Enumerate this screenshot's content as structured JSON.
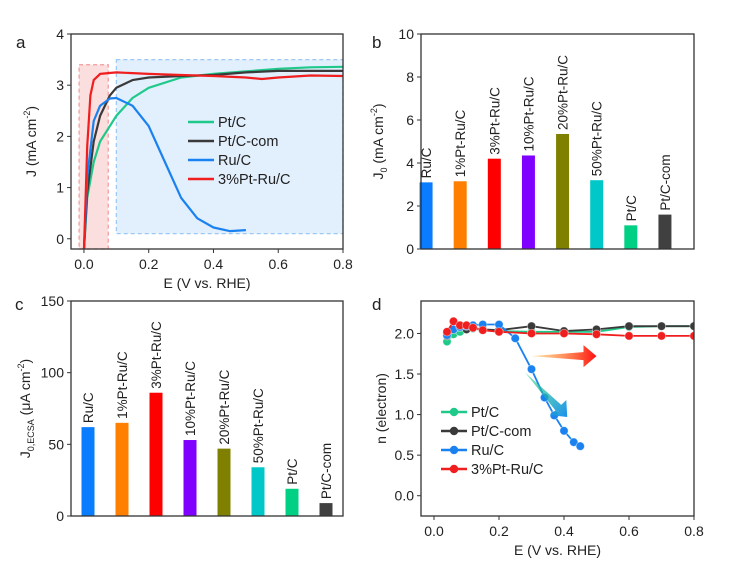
{
  "chart_data": [
    {
      "panel": "a",
      "type": "line",
      "xlabel": "E (V vs. RHE)",
      "ylabel": "J (mA cm",
      "ylabel_sup": "-2",
      "ylabel_end": ")",
      "xlim": [
        -0.04,
        0.8
      ],
      "ylim": [
        -0.2,
        4
      ],
      "xticks": [
        0.0,
        0.2,
        0.4,
        0.6,
        0.8
      ],
      "xtick_labels": [
        "0.0",
        "0.2",
        "0.4",
        "0.6",
        "0.8"
      ],
      "yticks": [
        0,
        1,
        2,
        3,
        4
      ],
      "ytick_labels": [
        "0",
        "1",
        "2",
        "3",
        "4"
      ],
      "legend": "center-right",
      "shaded_regions": [
        {
          "x": [
            -0.015,
            0.075
          ],
          "y": [
            -0.2,
            3.4
          ],
          "color": "#f8c8c8"
        },
        {
          "x": [
            0.1,
            0.8
          ],
          "y": [
            0.1,
            3.5
          ],
          "color": "#cfe4fb"
        }
      ],
      "series": [
        {
          "name": "Pt/C",
          "color": "#1fc98a",
          "points": [
            [
              0,
              -0.2
            ],
            [
              0.01,
              0.8
            ],
            [
              0.03,
              1.5
            ],
            [
              0.05,
              1.9
            ],
            [
              0.1,
              2.4
            ],
            [
              0.15,
              2.75
            ],
            [
              0.2,
              2.95
            ],
            [
              0.3,
              3.15
            ],
            [
              0.4,
              3.22
            ],
            [
              0.5,
              3.27
            ],
            [
              0.6,
              3.32
            ],
            [
              0.7,
              3.35
            ],
            [
              0.8,
              3.36
            ]
          ]
        },
        {
          "name": "Pt/C-com",
          "color": "#3a3a3a",
          "points": [
            [
              0,
              -0.2
            ],
            [
              0.01,
              0.9
            ],
            [
              0.03,
              1.9
            ],
            [
              0.05,
              2.4
            ],
            [
              0.08,
              2.8
            ],
            [
              0.1,
              2.95
            ],
            [
              0.15,
              3.1
            ],
            [
              0.2,
              3.15
            ],
            [
              0.3,
              3.18
            ],
            [
              0.4,
              3.2
            ],
            [
              0.5,
              3.25
            ],
            [
              0.6,
              3.28
            ],
            [
              0.8,
              3.28
            ]
          ]
        },
        {
          "name": "Ru/C",
          "color": "#1a82f0",
          "points": [
            [
              0,
              -0.2
            ],
            [
              0.01,
              1.2
            ],
            [
              0.03,
              2.3
            ],
            [
              0.05,
              2.6
            ],
            [
              0.08,
              2.74
            ],
            [
              0.1,
              2.75
            ],
            [
              0.15,
              2.6
            ],
            [
              0.2,
              2.2
            ],
            [
              0.25,
              1.5
            ],
            [
              0.3,
              0.8
            ],
            [
              0.35,
              0.4
            ],
            [
              0.4,
              0.22
            ],
            [
              0.45,
              0.15
            ],
            [
              0.5,
              0.17
            ]
          ]
        },
        {
          "name": "3%Pt-Ru/C",
          "color": "#f01e1e",
          "points": [
            [
              0,
              -0.2
            ],
            [
              0.01,
              1.8
            ],
            [
              0.02,
              2.8
            ],
            [
              0.03,
              3.1
            ],
            [
              0.05,
              3.22
            ],
            [
              0.1,
              3.25
            ],
            [
              0.2,
              3.22
            ],
            [
              0.3,
              3.2
            ],
            [
              0.4,
              3.18
            ],
            [
              0.5,
              3.15
            ],
            [
              0.55,
              3.12
            ],
            [
              0.6,
              3.15
            ],
            [
              0.7,
              3.19
            ],
            [
              0.8,
              3.18
            ]
          ]
        }
      ]
    },
    {
      "panel": "b",
      "type": "bar",
      "ylabel": "J",
      "ylabel_sub": "0",
      "ylabel_rest": " (mA cm",
      "ylabel_sup": "-2",
      "ylabel_end": ")",
      "ylim": [
        0,
        10
      ],
      "yticks": [
        0,
        2,
        4,
        6,
        8,
        10
      ],
      "ytick_labels": [
        "0",
        "2",
        "4",
        "6",
        "8",
        "10"
      ],
      "categories": [
        "Ru/C",
        "1%Pt-Ru/C",
        "3%Pt-Ru/C",
        "10%Pt-Ru/C",
        "20%Pt-Ru/C",
        "50%Pt-Ru/C",
        "Pt/C",
        "Pt/C-com"
      ],
      "values": [
        3.1,
        3.15,
        4.2,
        4.35,
        5.35,
        3.2,
        1.1,
        1.6
      ],
      "colors": [
        "#0a7cff",
        "#ff7f00",
        "#ff0000",
        "#7f00ff",
        "#808000",
        "#00c8c8",
        "#00d084",
        "#404040"
      ]
    },
    {
      "panel": "c",
      "type": "bar",
      "ylabel": "J",
      "ylabel_sub": "0,ECSA",
      "ylabel_rest": " (μA cm",
      "ylabel_sup": "-2",
      "ylabel_end": ")",
      "ylim": [
        0,
        150
      ],
      "yticks": [
        0,
        50,
        100,
        150
      ],
      "ytick_labels": [
        "0",
        "50",
        "100",
        "150"
      ],
      "categories": [
        "Ru/C",
        "1%Pt-Ru/C",
        "3%Pt-Ru/C",
        "10%Pt-Ru/C",
        "20%Pt-Ru/C",
        "50%Pt-Ru/C",
        "Pt/C",
        "Pt/C-com"
      ],
      "values": [
        62,
        65,
        86,
        53,
        47,
        34,
        19,
        9
      ],
      "colors": [
        "#0a7cff",
        "#ff7f00",
        "#ff0000",
        "#7f00ff",
        "#808000",
        "#00c8c8",
        "#00d084",
        "#404040"
      ]
    },
    {
      "panel": "d",
      "type": "line",
      "markers": true,
      "xlabel": "E (V vs. RHE)",
      "ylabel": "n (electron)",
      "xlim": [
        -0.04,
        0.8
      ],
      "ylim": [
        -0.25,
        2.4
      ],
      "xticks": [
        0.0,
        0.2,
        0.4,
        0.6,
        0.8
      ],
      "xtick_labels": [
        "0.0",
        "0.2",
        "0.4",
        "0.6",
        "0.8"
      ],
      "yticks": [
        0.0,
        0.5,
        1.0,
        1.5,
        2.0
      ],
      "ytick_labels": [
        "0.0",
        "0.5",
        "1.0",
        "1.5",
        "2.0"
      ],
      "legend": "lower-left",
      "annotations": [
        {
          "type": "arrow",
          "from": [
            0.3,
            1.72
          ],
          "to": [
            0.5,
            1.72
          ],
          "gradient": [
            "#ffb020",
            "#ff1010"
          ]
        },
        {
          "type": "arrow",
          "from": [
            0.28,
            1.52
          ],
          "to": [
            0.41,
            0.97
          ],
          "gradient": [
            "#20d070",
            "#1a90f0"
          ]
        }
      ],
      "series": [
        {
          "name": "Pt/C",
          "color": "#1fc98a",
          "points": [
            [
              0.04,
              1.9
            ],
            [
              0.06,
              1.99
            ],
            [
              0.08,
              2.02
            ],
            [
              0.1,
              2.05
            ],
            [
              0.12,
              2.06
            ],
            [
              0.15,
              2.04
            ],
            [
              0.2,
              2.03
            ],
            [
              0.3,
              2.02
            ],
            [
              0.4,
              2.02
            ],
            [
              0.5,
              2.02
            ],
            [
              0.6,
              2.08
            ],
            [
              0.7,
              2.09
            ],
            [
              0.8,
              2.09
            ]
          ]
        },
        {
          "name": "Pt/C-com",
          "color": "#3a3a3a",
          "points": [
            [
              0.04,
              1.97
            ],
            [
              0.06,
              2.05
            ],
            [
              0.08,
              2.08
            ],
            [
              0.1,
              2.05
            ],
            [
              0.12,
              2.07
            ],
            [
              0.15,
              2.05
            ],
            [
              0.2,
              2.04
            ],
            [
              0.3,
              2.09
            ],
            [
              0.4,
              2.03
            ],
            [
              0.5,
              2.05
            ],
            [
              0.6,
              2.09
            ],
            [
              0.7,
              2.09
            ],
            [
              0.8,
              2.09
            ]
          ]
        },
        {
          "name": "Ru/C",
          "color": "#1a82f0",
          "points": [
            [
              0.04,
              1.98
            ],
            [
              0.06,
              2.05
            ],
            [
              0.08,
              2.08
            ],
            [
              0.1,
              2.09
            ],
            [
              0.12,
              2.1
            ],
            [
              0.15,
              2.11
            ],
            [
              0.2,
              2.11
            ],
            [
              0.25,
              1.94
            ],
            [
              0.3,
              1.56
            ],
            [
              0.34,
              1.21
            ],
            [
              0.37,
              0.99
            ],
            [
              0.4,
              0.8
            ],
            [
              0.43,
              0.66
            ],
            [
              0.45,
              0.61
            ]
          ]
        },
        {
          "name": "3%Pt-Ru/C",
          "color": "#f01e1e",
          "points": [
            [
              0.04,
              2.02
            ],
            [
              0.06,
              2.15
            ],
            [
              0.08,
              2.1
            ],
            [
              0.1,
              2.1
            ],
            [
              0.12,
              2.07
            ],
            [
              0.15,
              2.04
            ],
            [
              0.2,
              2.02
            ],
            [
              0.3,
              2.0
            ],
            [
              0.4,
              2.0
            ],
            [
              0.5,
              1.99
            ],
            [
              0.6,
              1.97
            ],
            [
              0.7,
              1.97
            ],
            [
              0.8,
              1.97
            ]
          ]
        }
      ]
    }
  ]
}
